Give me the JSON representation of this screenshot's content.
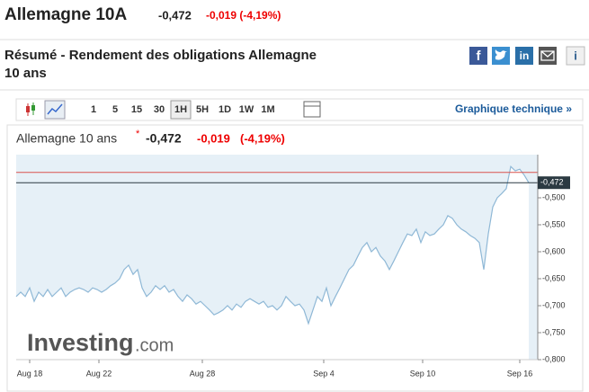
{
  "header": {
    "title": "Allemagne 10A",
    "last": "-0,472",
    "change": "-0,019 (-4,19%)"
  },
  "summary": {
    "title_lines": [
      "Résumé - Rendement des obligations Allemagne",
      "10 ans"
    ],
    "share_icons": [
      "in",
      "i"
    ]
  },
  "toolbar": {
    "intervals": [
      "1",
      "5",
      "15",
      "30",
      "1H",
      "5H",
      "1D",
      "1W",
      "1M"
    ],
    "active": "1H",
    "link": "Graphique technique »"
  },
  "chart_data": {
    "type": "line",
    "name": "Allemagne 10 ans",
    "last": "-0,472",
    "change": "-0,019",
    "change_pct": "(-4,19%)",
    "watermark": [
      "Investing",
      ".com"
    ],
    "color": "#8fb8d6",
    "background": "#e6f0f7",
    "grid": false,
    "xlim": [
      0,
      116
    ],
    "xticks": [
      {
        "value": 3,
        "label": "Aug 18"
      },
      {
        "value": 18.4,
        "label": "Aug 22"
      },
      {
        "value": 41.4,
        "label": "Aug 28"
      },
      {
        "value": 68.4,
        "label": "Sep 4"
      },
      {
        "value": 90.4,
        "label": "Sep 10"
      },
      {
        "value": 112,
        "label": "Sep 16"
      }
    ],
    "ylim": [
      -0.8,
      -0.42
    ],
    "yticks": [
      {
        "value": -0.5,
        "label": "-0,500"
      },
      {
        "value": -0.55,
        "label": "-0,550"
      },
      {
        "value": -0.6,
        "label": "-0,600"
      },
      {
        "value": -0.65,
        "label": "-0,650"
      },
      {
        "value": -0.7,
        "label": "-0,700"
      },
      {
        "value": -0.75,
        "label": "-0,750"
      },
      {
        "value": -0.8,
        "label": "-0,800"
      }
    ],
    "current": {
      "value": -0.472,
      "label": "-0,472",
      "color": "#2b3a42"
    },
    "previous_close": {
      "value": -0.453,
      "color": "#d9534f"
    },
    "values": [
      -0.683,
      -0.675,
      -0.683,
      -0.667,
      -0.692,
      -0.675,
      -0.683,
      -0.67,
      -0.683,
      -0.675,
      -0.667,
      -0.683,
      -0.675,
      -0.67,
      -0.667,
      -0.67,
      -0.675,
      -0.667,
      -0.67,
      -0.675,
      -0.67,
      -0.663,
      -0.658,
      -0.65,
      -0.633,
      -0.625,
      -0.642,
      -0.633,
      -0.667,
      -0.683,
      -0.675,
      -0.663,
      -0.67,
      -0.663,
      -0.675,
      -0.67,
      -0.683,
      -0.692,
      -0.68,
      -0.687,
      -0.697,
      -0.692,
      -0.7,
      -0.708,
      -0.717,
      -0.713,
      -0.708,
      -0.7,
      -0.708,
      -0.697,
      -0.703,
      -0.692,
      -0.687,
      -0.692,
      -0.697,
      -0.692,
      -0.703,
      -0.7,
      -0.708,
      -0.7,
      -0.683,
      -0.692,
      -0.7,
      -0.697,
      -0.708,
      -0.733,
      -0.708,
      -0.683,
      -0.692,
      -0.667,
      -0.7,
      -0.683,
      -0.667,
      -0.65,
      -0.633,
      -0.625,
      -0.608,
      -0.592,
      -0.583,
      -0.6,
      -0.592,
      -0.608,
      -0.617,
      -0.633,
      -0.617,
      -0.6,
      -0.583,
      -0.567,
      -0.57,
      -0.558,
      -0.583,
      -0.563,
      -0.57,
      -0.567,
      -0.558,
      -0.55,
      -0.533,
      -0.538,
      -0.55,
      -0.558,
      -0.563,
      -0.57,
      -0.575,
      -0.583,
      -0.633,
      -0.567,
      -0.517,
      -0.5,
      -0.492,
      -0.483,
      -0.442,
      -0.45,
      -0.447,
      -0.458,
      -0.472
    ]
  }
}
